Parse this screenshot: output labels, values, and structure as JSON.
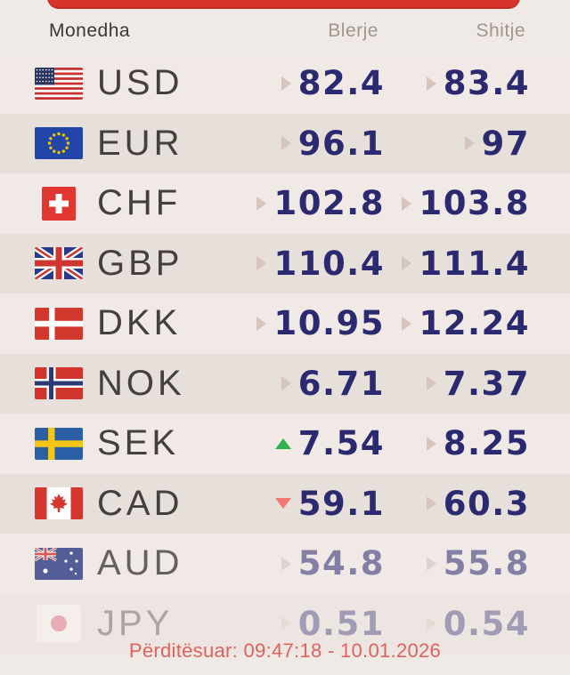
{
  "header": {
    "currency_label": "Monedha",
    "buy_label": "Blerje",
    "sell_label": "Shitje"
  },
  "rows": [
    {
      "code": "USD",
      "flag": "us",
      "buy": "82.4",
      "sell": "83.4",
      "buy_trend": "flat",
      "sell_trend": "flat",
      "fade": "none"
    },
    {
      "code": "EUR",
      "flag": "eu",
      "buy": "96.1",
      "sell": "97",
      "buy_trend": "flat",
      "sell_trend": "flat",
      "fade": "none"
    },
    {
      "code": "CHF",
      "flag": "ch",
      "buy": "102.8",
      "sell": "103.8",
      "buy_trend": "flat",
      "sell_trend": "flat",
      "fade": "none"
    },
    {
      "code": "GBP",
      "flag": "gb",
      "buy": "110.4",
      "sell": "111.4",
      "buy_trend": "flat",
      "sell_trend": "flat",
      "fade": "none"
    },
    {
      "code": "DKK",
      "flag": "dk",
      "buy": "10.95",
      "sell": "12.24",
      "buy_trend": "flat",
      "sell_trend": "flat",
      "fade": "none"
    },
    {
      "code": "NOK",
      "flag": "no",
      "buy": "6.71",
      "sell": "7.37",
      "buy_trend": "flat",
      "sell_trend": "flat",
      "fade": "none"
    },
    {
      "code": "SEK",
      "flag": "se",
      "buy": "7.54",
      "sell": "8.25",
      "buy_trend": "up",
      "sell_trend": "flat",
      "fade": "none"
    },
    {
      "code": "CAD",
      "flag": "ca",
      "buy": "59.1",
      "sell": "60.3",
      "buy_trend": "down",
      "sell_trend": "flat",
      "fade": "none"
    },
    {
      "code": "AUD",
      "flag": "au",
      "buy": "54.8",
      "sell": "55.8",
      "buy_trend": "flat",
      "sell_trend": "flat",
      "fade": "partial"
    },
    {
      "code": "JPY",
      "flag": "jp",
      "buy": "0.51",
      "sell": "0.54",
      "buy_trend": "flat",
      "sell_trend": "flat",
      "fade": "strong"
    }
  ],
  "footer": {
    "updated_text": "Përditësuar: 09:47:18 - 10.01.2026"
  },
  "colors": {
    "top_bar_red": "#d6342b",
    "value_navy": "#2b2a71",
    "trend_up_green": "#2fb14d",
    "trend_down_red": "#f37770",
    "trend_flat_taupe": "#d5c5bc",
    "footer_red": "#e0625c",
    "header_muted": "#a3958d",
    "row_light": "#f0e9e6",
    "row_dark": "#e7dfda"
  }
}
